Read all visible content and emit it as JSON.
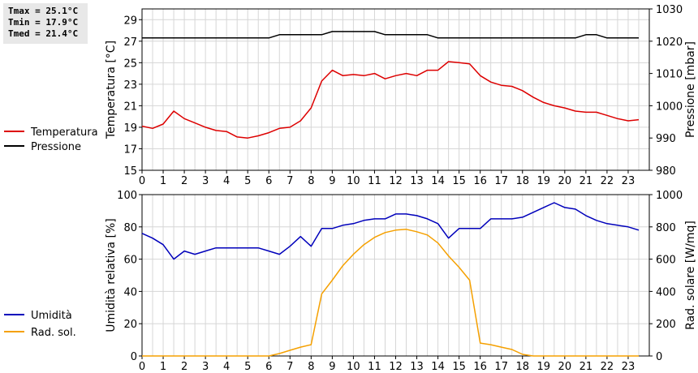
{
  "stats": {
    "tmax": "Tmax = 25.1°C",
    "tmin": "Tmin = 17.9°C",
    "tmed": "Tmed = 21.4°C"
  },
  "chart_data": [
    {
      "type": "line",
      "title": "",
      "xlabel": "",
      "ylabel": "Temperatura [°C]",
      "y2label": "Pressione [mbar]",
      "xlim": [
        0,
        24
      ],
      "ylim": [
        15,
        30
      ],
      "y2lim": [
        980,
        1030
      ],
      "x_ticks": [
        "0",
        "1",
        "2",
        "3",
        "4",
        "5",
        "6",
        "7",
        "8",
        "9",
        "10",
        "11",
        "12",
        "13",
        "14",
        "15",
        "16",
        "17",
        "18",
        "19",
        "20",
        "21",
        "22",
        "23"
      ],
      "y_ticks": [
        "15",
        "17",
        "19",
        "21",
        "23",
        "25",
        "27",
        "29"
      ],
      "y2_ticks": [
        "980",
        "990",
        "1000",
        "1010",
        "1020",
        "1030"
      ],
      "grid": true,
      "legend_placement": "left",
      "series": [
        {
          "name": "Temperatura",
          "axis": "left",
          "color": "#dd0000",
          "x": [
            0,
            0.5,
            1,
            1.5,
            2,
            2.5,
            3,
            3.5,
            4,
            4.5,
            5,
            5.5,
            6,
            6.5,
            7,
            7.5,
            8,
            8.5,
            9,
            9.5,
            10,
            10.5,
            11,
            11.5,
            12,
            12.5,
            13,
            13.5,
            14,
            14.5,
            15,
            15.5,
            16,
            16.5,
            17,
            17.5,
            18,
            18.5,
            19,
            19.5,
            20,
            20.5,
            21,
            21.5,
            22,
            22.5,
            23,
            23.5
          ],
          "values": [
            19.1,
            18.9,
            19.3,
            20.5,
            19.8,
            19.4,
            19.0,
            18.7,
            18.6,
            18.1,
            18.0,
            18.2,
            18.5,
            18.9,
            19.0,
            19.6,
            20.8,
            23.3,
            24.3,
            23.8,
            23.9,
            23.8,
            24.0,
            23.5,
            23.8,
            24.0,
            23.8,
            24.3,
            24.3,
            25.1,
            25.0,
            24.9,
            23.8,
            23.2,
            22.9,
            22.8,
            22.4,
            21.8,
            21.3,
            21.0,
            20.8,
            20.5,
            20.4,
            20.4,
            20.1,
            19.8,
            19.6,
            19.7
          ]
        },
        {
          "name": "Pressione",
          "axis": "right",
          "color": "#000000",
          "x": [
            0,
            0.5,
            1,
            1.5,
            2,
            2.5,
            3,
            3.5,
            4,
            4.5,
            5,
            5.5,
            6,
            6.5,
            7,
            7.5,
            8,
            8.5,
            9,
            9.5,
            10,
            10.5,
            11,
            11.5,
            12,
            12.5,
            13,
            13.5,
            14,
            14.5,
            15,
            15.5,
            16,
            16.5,
            17,
            17.5,
            18,
            18.5,
            19,
            19.5,
            20,
            20.5,
            21,
            21.5,
            22,
            22.5,
            23,
            23.5
          ],
          "values": [
            1021,
            1021,
            1021,
            1021,
            1021,
            1021,
            1021,
            1021,
            1021,
            1021,
            1021,
            1021,
            1021,
            1022,
            1022,
            1022,
            1022,
            1022,
            1023,
            1023,
            1023,
            1023,
            1023,
            1022,
            1022,
            1022,
            1022,
            1022,
            1021,
            1021,
            1021,
            1021,
            1021,
            1021,
            1021,
            1021,
            1021,
            1021,
            1021,
            1021,
            1021,
            1021,
            1022,
            1022,
            1021,
            1021,
            1021,
            1021
          ]
        }
      ]
    },
    {
      "type": "line",
      "title": "",
      "xlabel": "",
      "ylabel": "Umidità relativa [%]",
      "y2label": "Rad. solare [W/mq]",
      "xlim": [
        0,
        24
      ],
      "ylim": [
        0,
        100
      ],
      "y2lim": [
        0,
        1000
      ],
      "x_ticks": [
        "0",
        "1",
        "2",
        "3",
        "4",
        "5",
        "6",
        "7",
        "8",
        "9",
        "10",
        "11",
        "12",
        "13",
        "14",
        "15",
        "16",
        "17",
        "18",
        "19",
        "20",
        "21",
        "22",
        "23"
      ],
      "y_ticks": [
        "0",
        "20",
        "40",
        "60",
        "80",
        "100"
      ],
      "y2_ticks": [
        "0",
        "200",
        "400",
        "600",
        "800",
        "1000"
      ],
      "grid": true,
      "legend_placement": "left",
      "series": [
        {
          "name": "Umidità",
          "axis": "left",
          "color": "#0000bb",
          "x": [
            0,
            0.5,
            1,
            1.5,
            2,
            2.5,
            3,
            3.5,
            4,
            4.5,
            5,
            5.5,
            6,
            6.5,
            7,
            7.5,
            8,
            8.5,
            9,
            9.5,
            10,
            10.5,
            11,
            11.5,
            12,
            12.5,
            13,
            13.5,
            14,
            14.5,
            15,
            15.5,
            16,
            16.5,
            17,
            17.5,
            18,
            18.5,
            19,
            19.5,
            20,
            20.5,
            21,
            21.5,
            22,
            22.5,
            23,
            23.5
          ],
          "values": [
            76,
            73,
            69,
            60,
            65,
            63,
            65,
            67,
            67,
            67,
            67,
            67,
            65,
            63,
            68,
            74,
            68,
            79,
            79,
            81,
            82,
            84,
            85,
            85,
            88,
            88,
            87,
            85,
            82,
            73,
            79,
            79,
            79,
            85,
            85,
            85,
            86,
            89,
            92,
            95,
            92,
            91,
            87,
            84,
            82,
            81,
            80,
            78
          ]
        },
        {
          "name": "Rad. sol.",
          "axis": "right",
          "color": "#f5a000",
          "x": [
            0,
            0.5,
            1,
            1.5,
            2,
            2.5,
            3,
            3.5,
            4,
            4.5,
            5,
            5.5,
            6,
            6.5,
            7,
            7.5,
            8,
            8.5,
            9,
            9.5,
            10,
            10.5,
            11,
            11.5,
            12,
            12.5,
            13,
            13.5,
            14,
            14.5,
            15,
            15.5,
            16,
            16.5,
            17,
            17.5,
            18,
            18.5,
            19,
            19.5,
            20,
            20.5,
            21,
            21.5,
            22,
            22.5,
            23,
            23.5
          ],
          "values": [
            0,
            0,
            0,
            0,
            0,
            0,
            0,
            0,
            0,
            0,
            0,
            0,
            0,
            15,
            35,
            55,
            70,
            385,
            470,
            560,
            630,
            690,
            735,
            765,
            780,
            785,
            770,
            750,
            700,
            620,
            550,
            470,
            80,
            70,
            55,
            40,
            10,
            0,
            0,
            0,
            0,
            0,
            0,
            0,
            0,
            0,
            0,
            0
          ]
        }
      ]
    }
  ]
}
